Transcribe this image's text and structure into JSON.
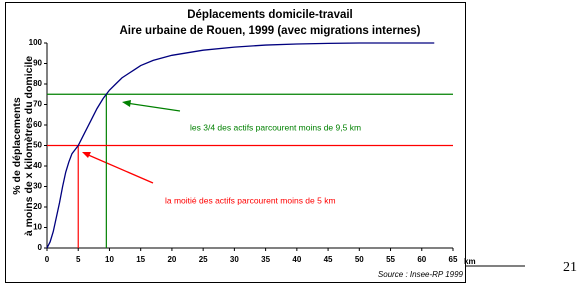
{
  "chart_data": {
    "type": "line",
    "title": "Déplacements domicile-travail",
    "subtitle": "Aire urbaine de Rouen, 1999 (avec migrations internes)",
    "y_label": [
      "% de déplacements",
      "à moins de x kilomètres du domicile"
    ],
    "x_label": "km",
    "source": "Source : Insee-RP 1999",
    "x": [
      0,
      0.5,
      1,
      1.5,
      2,
      2.5,
      3,
      3.5,
      4,
      4.5,
      5,
      6,
      7,
      8,
      9,
      9.5,
      10,
      11,
      12,
      13,
      14,
      15,
      17,
      20,
      25,
      30,
      35,
      40,
      45,
      50,
      62
    ],
    "series": [
      {
        "color": "#00007f",
        "values": [
          0,
          3,
          8,
          15,
          22,
          30,
          37,
          42,
          46,
          48,
          50,
          56,
          62,
          68,
          73,
          75,
          77,
          80,
          83,
          85,
          87,
          89,
          91.5,
          94,
          96.5,
          98,
          99,
          99.5,
          99.8,
          100,
          100
        ]
      }
    ],
    "xlim": [
      0,
      65
    ],
    "xticks": [
      0,
      5,
      10,
      15,
      20,
      25,
      30,
      35,
      40,
      45,
      50,
      55,
      60,
      65
    ],
    "ylim": [
      0,
      100
    ],
    "yticks": [
      0,
      10,
      20,
      30,
      40,
      50,
      60,
      70,
      80,
      90,
      100
    ],
    "reference_lines": [
      {
        "x": 9.5,
        "y": 75,
        "color": "#008000",
        "annotation": "les 3/4 des actifs parcourent moins de 9,5 km"
      },
      {
        "x": 5,
        "y": 50,
        "color": "#ff0000",
        "annotation": "la moitié des actifs parcourent moins de 5 km"
      }
    ]
  },
  "page_number": "21"
}
